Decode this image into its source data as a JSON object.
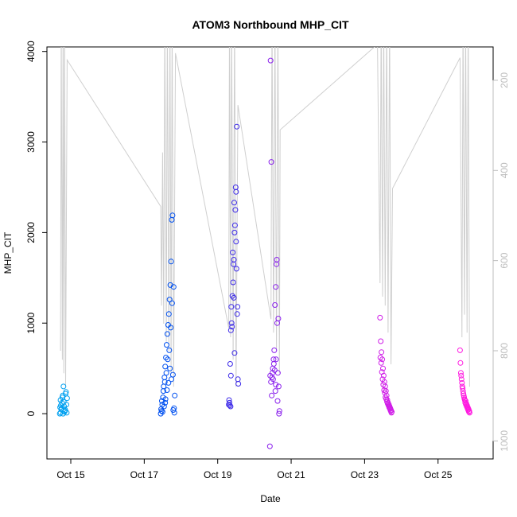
{
  "chart_data": {
    "type": "scatter",
    "title": "ATOM3 Northbound MHP_CIT",
    "xlabel": "Date",
    "ylabel": "MHP_CIT",
    "x_ticks": [
      "Oct 15",
      "Oct 17",
      "Oct 19",
      "Oct 21",
      "Oct 23",
      "Oct 25"
    ],
    "x_tick_values": [
      15,
      17,
      19,
      21,
      23,
      25
    ],
    "xlim": [
      14.35,
      26.5
    ],
    "y_ticks": [
      0,
      1000,
      2000,
      3000,
      4000
    ],
    "ylim": [
      -500,
      4050
    ],
    "y2_ticks": [
      200,
      400,
      600,
      800,
      1000
    ],
    "y2lim": [
      1040,
      126
    ],
    "grid": false,
    "legend": "none",
    "point_color_scale": [
      "#00a0f0",
      "#0050f0",
      "#3b28e8",
      "#8a20ec",
      "#d01ee8",
      "#ff1ae0"
    ],
    "line_color": "#cfcfcf",
    "depth_series": [
      [
        14.72,
        800
      ],
      [
        14.74,
        60
      ],
      [
        14.77,
        820
      ],
      [
        14.79,
        60
      ],
      [
        14.81,
        850
      ],
      [
        14.83,
        60
      ],
      [
        14.86,
        880
      ],
      [
        14.9,
        155
      ],
      [
        17.45,
        480
      ],
      [
        17.47,
        700
      ],
      [
        17.5,
        360
      ],
      [
        17.53,
        740
      ],
      [
        17.56,
        60
      ],
      [
        17.6,
        780
      ],
      [
        17.63,
        60
      ],
      [
        17.67,
        800
      ],
      [
        17.7,
        60
      ],
      [
        17.73,
        850
      ],
      [
        17.76,
        60
      ],
      [
        17.8,
        880
      ],
      [
        17.85,
        140
      ],
      [
        19.3,
        750
      ],
      [
        19.32,
        60
      ],
      [
        19.35,
        770
      ],
      [
        19.38,
        60
      ],
      [
        19.42,
        820
      ],
      [
        19.46,
        60
      ],
      [
        19.5,
        880
      ],
      [
        19.55,
        255
      ],
      [
        20.45,
        730
      ],
      [
        20.48,
        60
      ],
      [
        20.52,
        760
      ],
      [
        20.56,
        60
      ],
      [
        20.6,
        800
      ],
      [
        20.64,
        60
      ],
      [
        20.68,
        850
      ],
      [
        20.7,
        310
      ],
      [
        23.35,
        120
      ],
      [
        23.42,
        650
      ],
      [
        23.45,
        60
      ],
      [
        23.49,
        680
      ],
      [
        23.52,
        60
      ],
      [
        23.56,
        700
      ],
      [
        23.6,
        60
      ],
      [
        23.64,
        760
      ],
      [
        23.68,
        60
      ],
      [
        23.72,
        830
      ],
      [
        23.76,
        440
      ],
      [
        25.6,
        150
      ],
      [
        25.65,
        770
      ],
      [
        25.68,
        60
      ],
      [
        25.72,
        720
      ],
      [
        25.75,
        60
      ],
      [
        25.79,
        760
      ],
      [
        25.82,
        60
      ],
      [
        25.86,
        880
      ]
    ],
    "series": [
      {
        "x": [
          14.7,
          14.72,
          14.74,
          14.76,
          14.78,
          14.8,
          14.82,
          14.84,
          14.86,
          14.88,
          14.9,
          14.72,
          14.75,
          14.79,
          14.83,
          14.87,
          14.73,
          14.77,
          14.81,
          14.85,
          14.89,
          14.71
        ],
        "y": [
          0,
          10,
          50,
          120,
          200,
          300,
          80,
          30,
          220,
          100,
          170,
          150,
          60,
          0,
          20,
          240,
          90,
          180,
          130,
          40,
          10,
          70
        ]
      },
      {
        "x": [
          17.45,
          17.47,
          17.49,
          17.51,
          17.53,
          17.55,
          17.57,
          17.59,
          17.61,
          17.63,
          17.65,
          17.67,
          17.69,
          17.71,
          17.73,
          17.75,
          17.77,
          17.79,
          17.81,
          17.83,
          17.48,
          17.52,
          17.56,
          17.6,
          17.64,
          17.68,
          17.72,
          17.76,
          17.8,
          17.5,
          17.54,
          17.58,
          17.62,
          17.66,
          17.7,
          17.74,
          17.78,
          17.82,
          17.46,
          17.57
        ],
        "y": [
          0,
          30,
          100,
          180,
          300,
          400,
          520,
          620,
          760,
          880,
          980,
          1100,
          1260,
          1420,
          1680,
          2140,
          2190,
          40,
          60,
          200,
          140,
          250,
          350,
          450,
          600,
          700,
          950,
          1220,
          1400,
          20,
          80,
          160,
          260,
          340,
          500,
          380,
          430,
          10,
          50,
          120
        ]
      },
      {
        "x": [
          19.3,
          19.32,
          19.34,
          19.36,
          19.38,
          19.4,
          19.42,
          19.44,
          19.46,
          19.48,
          19.5,
          19.52,
          19.54,
          19.56,
          19.33,
          19.37,
          19.41,
          19.45,
          19.49,
          19.53,
          19.35,
          19.39,
          19.43,
          19.47,
          19.51,
          19.55,
          19.31,
          19.36,
          19.44,
          19.5,
          19.46
        ],
        "y": [
          100,
          120,
          550,
          920,
          1000,
          1300,
          1450,
          1700,
          2000,
          2250,
          2450,
          3170,
          1180,
          330,
          90,
          1180,
          1780,
          2330,
          2500,
          1100,
          80,
          960,
          1650,
          2080,
          1600,
          380,
          150,
          420,
          1280,
          1900,
          670
        ]
      },
      {
        "x": [
          20.42,
          20.44,
          20.46,
          20.48,
          20.5,
          20.52,
          20.54,
          20.56,
          20.58,
          20.6,
          20.62,
          20.64,
          20.66,
          20.68,
          20.45,
          20.49,
          20.53,
          20.57,
          20.61,
          20.65,
          20.47,
          20.51,
          20.55,
          20.59,
          20.63,
          20.67,
          20.43,
          20.58
        ],
        "y": [
          -360,
          3900,
          2780,
          400,
          500,
          600,
          700,
          1200,
          1400,
          1650,
          1000,
          450,
          300,
          30,
          350,
          450,
          550,
          250,
          1700,
          1050,
          200,
          380,
          480,
          600,
          140,
          0,
          420,
          320
        ]
      },
      {
        "x": [
          23.42,
          23.44,
          23.46,
          23.48,
          23.5,
          23.52,
          23.54,
          23.56,
          23.58,
          23.6,
          23.62,
          23.64,
          23.66,
          23.68,
          23.7,
          23.72,
          23.74,
          23.45,
          23.49,
          23.53,
          23.57,
          23.61,
          23.65,
          23.69,
          23.73,
          23.47,
          23.51,
          23.55,
          23.59,
          23.63,
          23.67,
          23.71,
          23.43
        ],
        "y": [
          1060,
          800,
          680,
          600,
          500,
          420,
          350,
          300,
          250,
          200,
          150,
          120,
          100,
          80,
          60,
          40,
          20,
          560,
          380,
          260,
          180,
          130,
          90,
          50,
          10,
          460,
          320,
          230,
          160,
          110,
          70,
          30,
          620
        ]
      },
      {
        "x": [
          25.6,
          25.62,
          25.64,
          25.66,
          25.68,
          25.7,
          25.72,
          25.74,
          25.76,
          25.78,
          25.8,
          25.82,
          25.84,
          25.86,
          25.63,
          25.67,
          25.71,
          25.75,
          25.79,
          25.83,
          25.65,
          25.69,
          25.73,
          25.77,
          25.81,
          25.85,
          25.61
        ],
        "y": [
          700,
          450,
          380,
          300,
          250,
          200,
          160,
          120,
          100,
          80,
          60,
          40,
          20,
          10,
          420,
          280,
          180,
          140,
          90,
          50,
          340,
          220,
          150,
          110,
          70,
          30,
          560
        ]
      }
    ]
  }
}
